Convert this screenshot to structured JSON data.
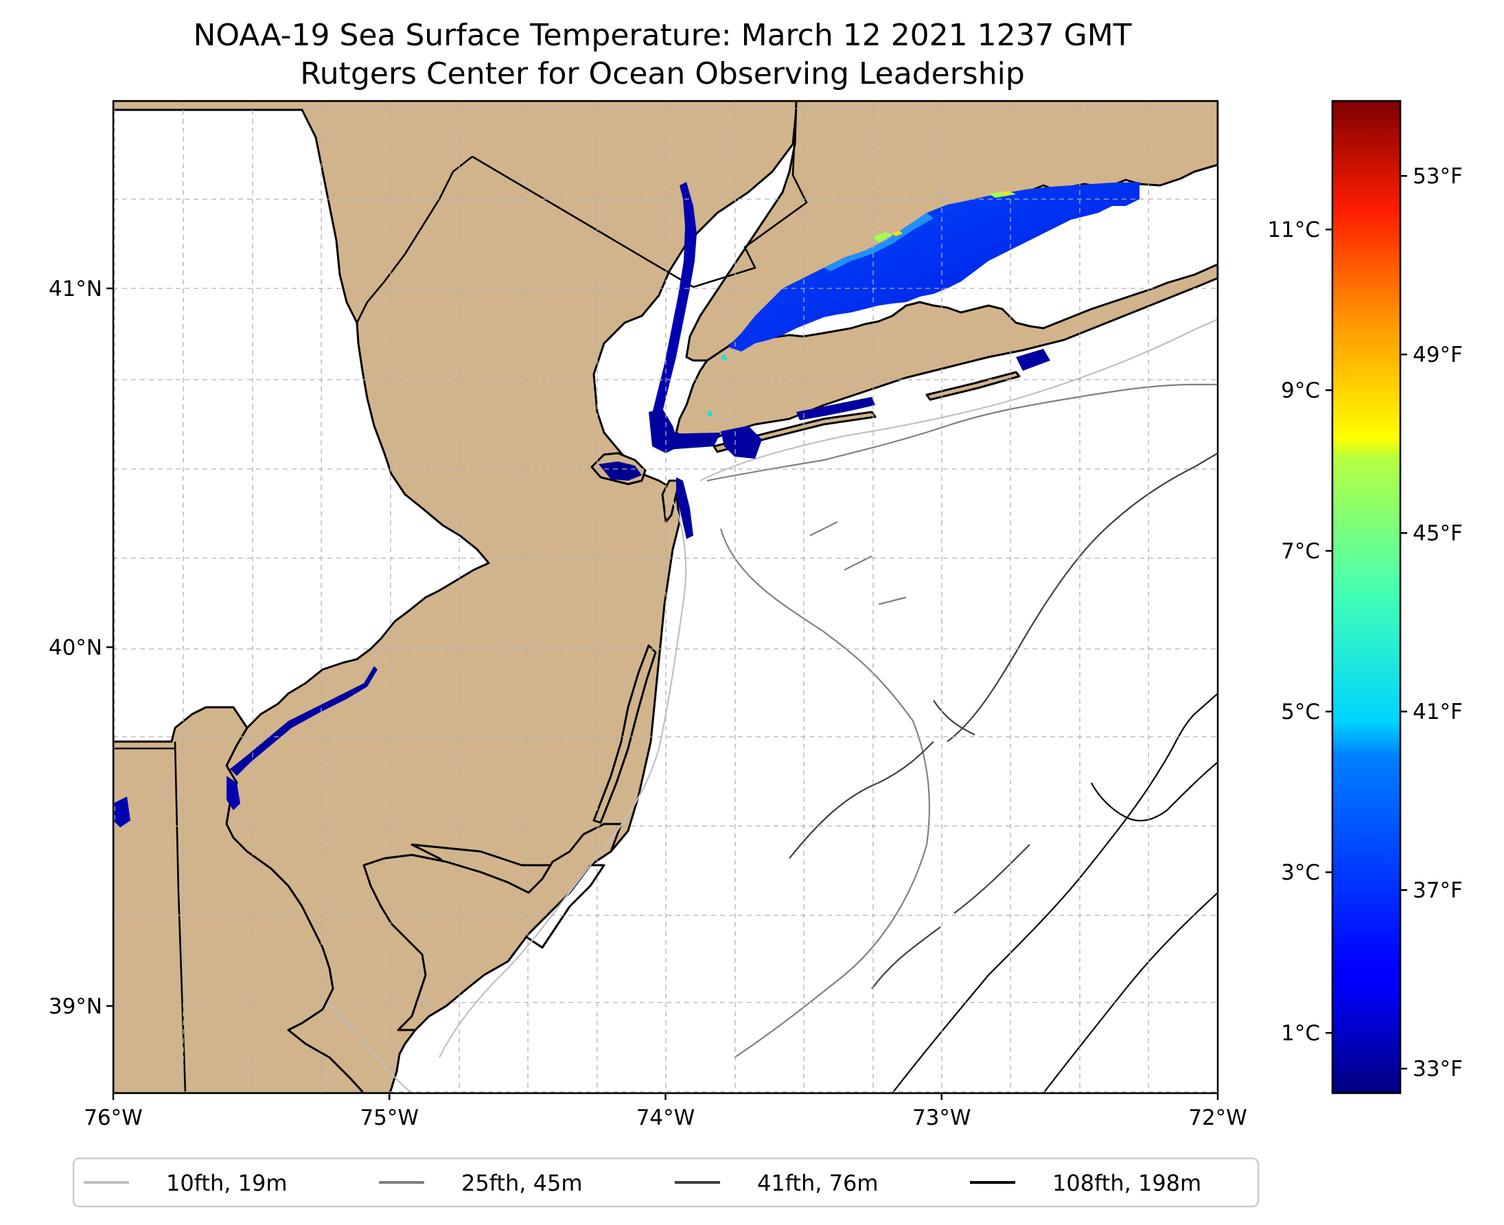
{
  "title_line1": "NOAA-19 Sea Surface Temperature: March 12 2021 1237 GMT",
  "title_line2": "Rutgers Center for Ocean Observing Leadership",
  "map": {
    "lon_range": [
      -76,
      -72
    ],
    "lat_range": [
      38.7,
      41.5
    ],
    "lon_ticks": [
      {
        "value": -76,
        "label": "76°W"
      },
      {
        "value": -75,
        "label": "75°W"
      },
      {
        "value": -74,
        "label": "74°W"
      },
      {
        "value": -73,
        "label": "73°W"
      },
      {
        "value": -72,
        "label": "72°W"
      }
    ],
    "lat_ticks": [
      {
        "value": 41,
        "label": "41°N"
      },
      {
        "value": 40,
        "label": "40°N"
      },
      {
        "value": 39,
        "label": "39°N"
      }
    ],
    "grid": true,
    "land_color": "#d2b48c"
  },
  "colorbar": {
    "colormap": "jet",
    "range_celsius": [
      0.25,
      12.6
    ],
    "celsius_ticks": [
      {
        "value": 1,
        "label": "1°C"
      },
      {
        "value": 3,
        "label": "3°C"
      },
      {
        "value": 5,
        "label": "5°C"
      },
      {
        "value": 7,
        "label": "7°C"
      },
      {
        "value": 9,
        "label": "9°C"
      },
      {
        "value": 11,
        "label": "11°C"
      }
    ],
    "fahrenheit_ticks": [
      {
        "value": 33,
        "label": "33°F"
      },
      {
        "value": 37,
        "label": "37°F"
      },
      {
        "value": 41,
        "label": "41°F"
      },
      {
        "value": 45,
        "label": "45°F"
      },
      {
        "value": 49,
        "label": "49°F"
      },
      {
        "value": 53,
        "label": "53°F"
      }
    ]
  },
  "legend": {
    "placement": "bottom",
    "items": [
      {
        "label": "10fth, 19m",
        "color": "#c0c0c0"
      },
      {
        "label": "25fth, 45m",
        "color": "#808080"
      },
      {
        "label": "41fth, 76m",
        "color": "#404040"
      },
      {
        "label": "108fth, 198m",
        "color": "#000000"
      }
    ]
  }
}
